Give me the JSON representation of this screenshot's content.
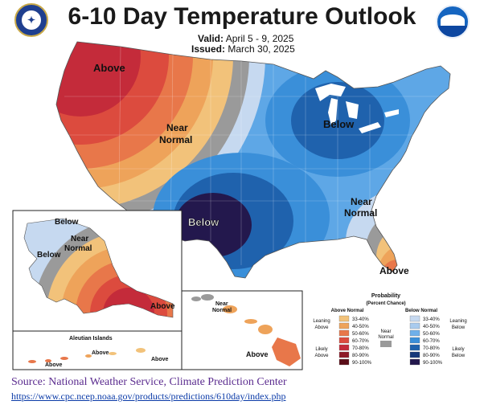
{
  "title": "6-10 Day Temperature Outlook",
  "valid_label": "Valid:",
  "valid_value": "April 5 - 9, 2025",
  "issued_label": "Issued:",
  "issued_value": "March 30, 2025",
  "map_labels": {
    "above_nw": "Above",
    "near_normal_west_1": "Near",
    "near_normal_west_2": "Normal",
    "below_great_lakes": "Below",
    "below_texas": "Below",
    "near_normal_se_1": "Near",
    "near_normal_se_2": "Normal",
    "above_florida": "Above",
    "ak_below_north": "Below",
    "ak_near_normal_1": "Near",
    "ak_near_normal_2": "Normal",
    "ak_below_west": "Below",
    "ak_above": "Above",
    "aleutian_title": "Aleutian Islands",
    "aleutian_above_1": "Above",
    "aleutian_above_2": "Above",
    "aleutian_above_3": "Above",
    "hi_near_1": "Near",
    "hi_near_2": "Normal",
    "hi_above": "Above"
  },
  "legend": {
    "title_1": "Probability",
    "title_2": "(Percent Chance)",
    "above_header": "Above Normal",
    "below_header": "Below Normal",
    "near_normal_1": "Near",
    "near_normal_2": "Normal",
    "leaning_above_1": "Leaning",
    "leaning_above_2": "Above",
    "likely_above_1": "Likely",
    "likely_above_2": "Above",
    "leaning_below_1": "Leaning",
    "leaning_below_2": "Below",
    "likely_below_1": "Likely",
    "likely_below_2": "Below",
    "above_bins": [
      {
        "label": "33-40%",
        "color": "#f2c27a"
      },
      {
        "label": "40-50%",
        "color": "#eea35a"
      },
      {
        "label": "50-60%",
        "color": "#e8774a"
      },
      {
        "label": "60-70%",
        "color": "#dc4b3e"
      },
      {
        "label": "70-80%",
        "color": "#c42b3a"
      },
      {
        "label": "80-90%",
        "color": "#8e1a28"
      },
      {
        "label": "90-100%",
        "color": "#5a0d18"
      }
    ],
    "below_bins": [
      {
        "label": "33-40%",
        "color": "#c6d9f0"
      },
      {
        "label": "40-50%",
        "color": "#a9cbee"
      },
      {
        "label": "50-60%",
        "color": "#6fb0ea"
      },
      {
        "label": "60-70%",
        "color": "#3a8fd9"
      },
      {
        "label": "70-80%",
        "color": "#1f62ad"
      },
      {
        "label": "80-90%",
        "color": "#17387a"
      },
      {
        "label": "90-100%",
        "color": "#23184d"
      }
    ],
    "near_normal_color": "#9a9a9a"
  },
  "source_text": "Source: National Weather Service, Climate Prediction Center",
  "source_url": "https://www.cpc.ncep.noaa.gov/products/predictions/610day/index.php"
}
